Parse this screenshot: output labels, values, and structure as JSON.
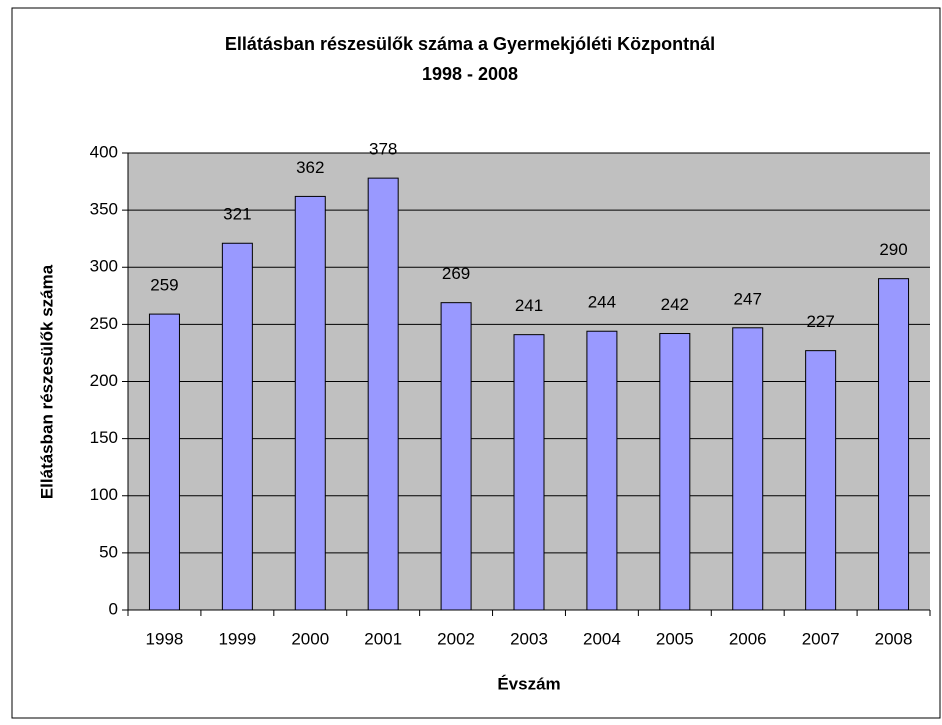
{
  "chart_data": {
    "type": "bar",
    "title": "Ellátásban részesülők száma a Gyermekjóléti Központnál",
    "subtitle": "1998 - 2008",
    "x_label": "Évszám",
    "y_label": "Ellátásban részesülők száma",
    "categories": [
      "1998",
      "1999",
      "2000",
      "2001",
      "2002",
      "2003",
      "2004",
      "2005",
      "2006",
      "2007",
      "2008"
    ],
    "values": [
      259,
      321,
      362,
      378,
      269,
      241,
      244,
      242,
      247,
      227,
      290
    ],
    "color": "#9999ff",
    "ylim": [
      0,
      400
    ],
    "yticks": [
      0,
      50,
      100,
      150,
      200,
      250,
      300,
      350,
      400
    ],
    "grid": true
  }
}
